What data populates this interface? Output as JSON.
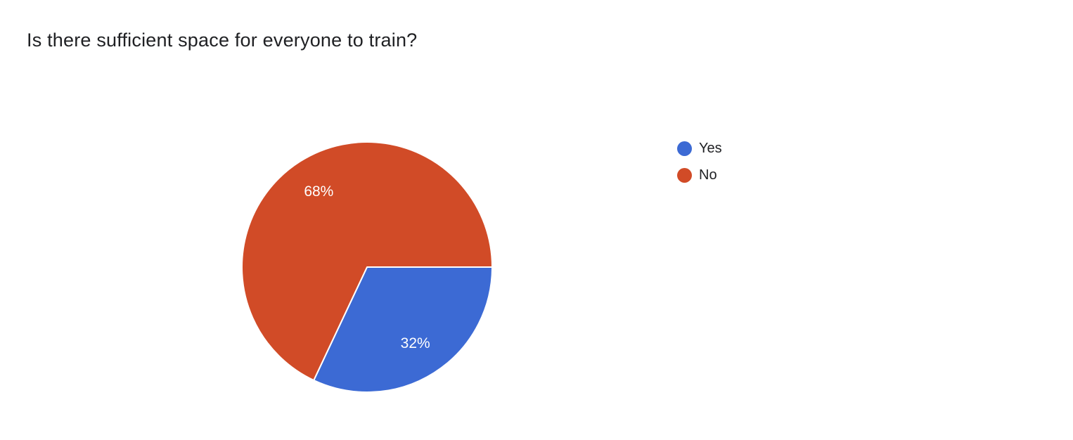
{
  "page": {
    "title": "Is there sufficient space for everyone to train?"
  },
  "chart_data": {
    "type": "pie",
    "title": "Is there sufficient space for everyone to train?",
    "categories": [
      "Yes",
      "No"
    ],
    "values": [
      32,
      68
    ],
    "slice_labels": [
      "32%",
      "68%"
    ],
    "colors": [
      "#3c6ad4",
      "#d14b27"
    ],
    "start_angle_deg_from_east_clockwise": 0,
    "direction": "clockwise",
    "legend_position": "right",
    "label_color": "#ffffff"
  },
  "legend": {
    "items": [
      {
        "label": "Yes",
        "color": "#3c6ad4"
      },
      {
        "label": "No",
        "color": "#d14b27"
      }
    ]
  }
}
